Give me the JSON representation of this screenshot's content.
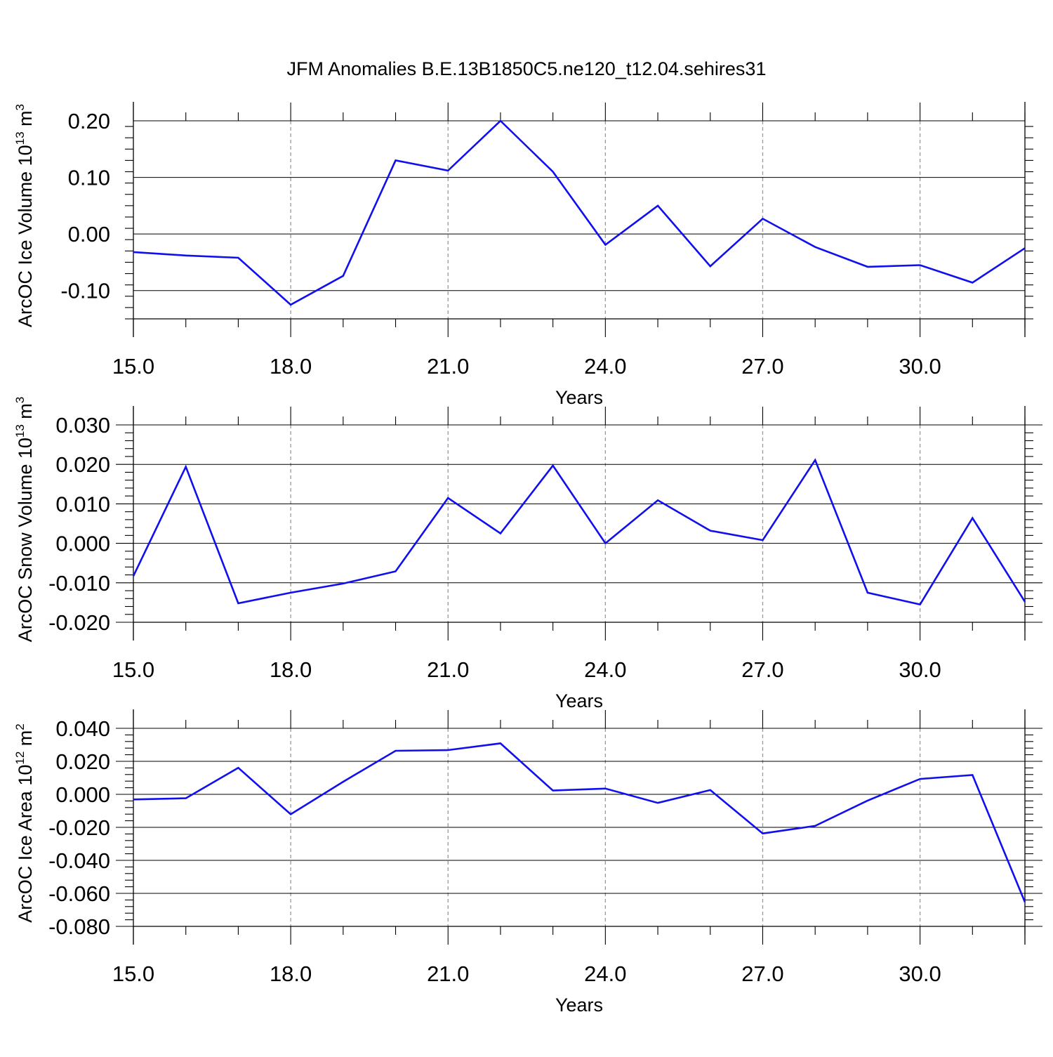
{
  "title": "JFM Anomalies B.E.13B1850C5.ne120_t12.04.sehires31",
  "colors": {
    "line": "#1010ee",
    "axis": "#000000",
    "grid": "#999999",
    "background": "#ffffff"
  },
  "chart_data": [
    {
      "type": "line",
      "xlabel": "Years",
      "ylabel": {
        "text": "ArcOC Ice Volume 10",
        "exp": "13",
        "unit": " m",
        "unit_exp": "3"
      },
      "xlim": [
        15,
        32
      ],
      "ylim": [
        -0.15,
        0.2
      ],
      "yticks": [
        -0.1,
        0.0,
        0.1,
        0.2
      ],
      "ytick_labels": [
        "-0.10",
        "0.00",
        "0.10",
        "0.20"
      ],
      "xticks": [
        15,
        18,
        21,
        24,
        27,
        30
      ],
      "xtick_labels": [
        "15.0",
        "18.0",
        "21.0",
        "24.0",
        "27.0",
        "30.0"
      ],
      "x": [
        15,
        16,
        17,
        18,
        19,
        20,
        21,
        22,
        23,
        24,
        25,
        26,
        27,
        28,
        29,
        30,
        31,
        32
      ],
      "series": [
        {
          "values": [
            -0.032,
            -0.038,
            -0.042,
            -0.125,
            -0.074,
            0.13,
            0.112,
            0.2,
            0.11,
            -0.019,
            0.05,
            -0.057,
            0.027,
            -0.023,
            -0.058,
            -0.055,
            -0.086,
            -0.025
          ]
        }
      ]
    },
    {
      "type": "line",
      "xlabel": "Years",
      "ylabel": {
        "text": "ArcOC Snow Volume 10",
        "exp": "13",
        "unit": " m",
        "unit_exp": "3"
      },
      "xlim": [
        15,
        32
      ],
      "ylim": [
        -0.02,
        0.03
      ],
      "yticks": [
        -0.02,
        -0.01,
        0.0,
        0.01,
        0.02,
        0.03
      ],
      "ytick_labels": [
        "-0.020",
        "-0.010",
        "0.000",
        "0.010",
        "0.020",
        "0.030"
      ],
      "xticks": [
        15,
        18,
        21,
        24,
        27,
        30
      ],
      "xtick_labels": [
        "15.0",
        "18.0",
        "21.0",
        "24.0",
        "27.0",
        "30.0"
      ],
      "x": [
        15,
        16,
        17,
        18,
        19,
        20,
        21,
        22,
        23,
        24,
        25,
        26,
        27,
        28,
        29,
        30,
        31,
        32
      ],
      "series": [
        {
          "values": [
            -0.0083,
            0.0194,
            -0.0152,
            -0.0125,
            -0.0102,
            -0.0071,
            0.0115,
            0.0025,
            0.0197,
            0.0,
            0.0109,
            0.0032,
            0.0008,
            0.0211,
            -0.0125,
            -0.0155,
            0.0064,
            -0.0148
          ]
        }
      ]
    },
    {
      "type": "line",
      "xlabel": "Years",
      "ylabel": {
        "text": "ArcOC Ice Area 10",
        "exp": "12",
        "unit": " m",
        "unit_exp": "2"
      },
      "xlim": [
        15,
        32
      ],
      "ylim": [
        -0.08,
        0.04
      ],
      "yticks": [
        -0.08,
        -0.06,
        -0.04,
        -0.02,
        0.0,
        0.02,
        0.04
      ],
      "ytick_labels": [
        "-0.080",
        "-0.060",
        "-0.040",
        "-0.020",
        "0.000",
        "0.020",
        "0.040"
      ],
      "xticks": [
        15,
        18,
        21,
        24,
        27,
        30
      ],
      "xtick_labels": [
        "15.0",
        "18.0",
        "21.0",
        "24.0",
        "27.0",
        "30.0"
      ],
      "x": [
        15,
        16,
        17,
        18,
        19,
        20,
        21,
        22,
        23,
        24,
        25,
        26,
        27,
        28,
        29,
        30,
        31,
        32
      ],
      "series": [
        {
          "values": [
            -0.0031,
            -0.0024,
            0.0161,
            -0.0121,
            0.0076,
            0.0264,
            0.0268,
            0.0309,
            0.0023,
            0.0035,
            -0.0052,
            0.0026,
            -0.0237,
            -0.0191,
            -0.0038,
            0.0093,
            0.0117,
            -0.0653
          ]
        }
      ]
    }
  ]
}
